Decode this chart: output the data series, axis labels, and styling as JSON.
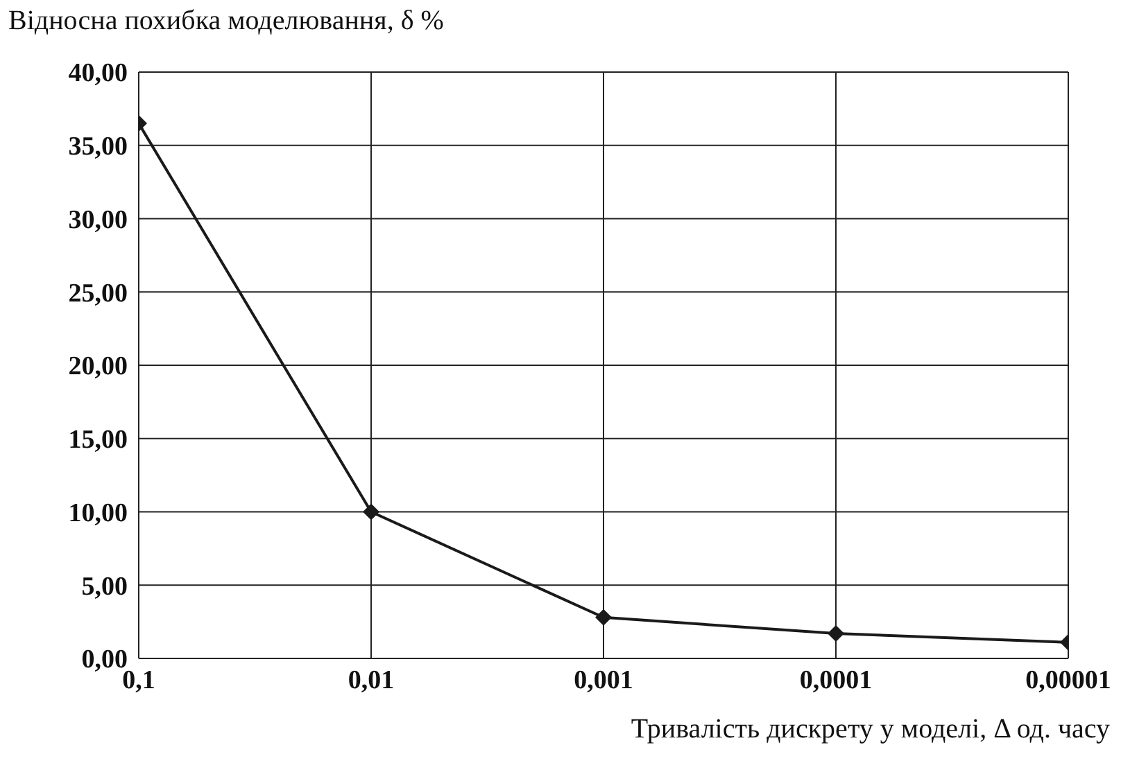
{
  "chart_data": {
    "type": "line",
    "ylabel": "Відносна похибка моделювання, δ %",
    "xlabel": "Тривалість дискрету у моделі, Δ од. часу",
    "categories": [
      "0,1",
      "0,01",
      "0,001",
      "0,0001",
      "0,00001"
    ],
    "series": [
      {
        "color": "#1a1a1a",
        "values": [
          36.5,
          10.0,
          2.8,
          1.7,
          1.1
        ]
      }
    ],
    "ylim": [
      0,
      40
    ],
    "yticks": [
      {
        "value": 0,
        "label": "0,00"
      },
      {
        "value": 5,
        "label": "5,00"
      },
      {
        "value": 10,
        "label": "10,00"
      },
      {
        "value": 15,
        "label": "15,00"
      },
      {
        "value": 20,
        "label": "20,00"
      },
      {
        "value": 25,
        "label": "25,00"
      },
      {
        "value": 30,
        "label": "30,00"
      },
      {
        "value": 35,
        "label": "35,00"
      },
      {
        "value": 40,
        "label": "40,00"
      }
    ],
    "grid": true,
    "marker": "diamond",
    "line_style": "solid"
  }
}
